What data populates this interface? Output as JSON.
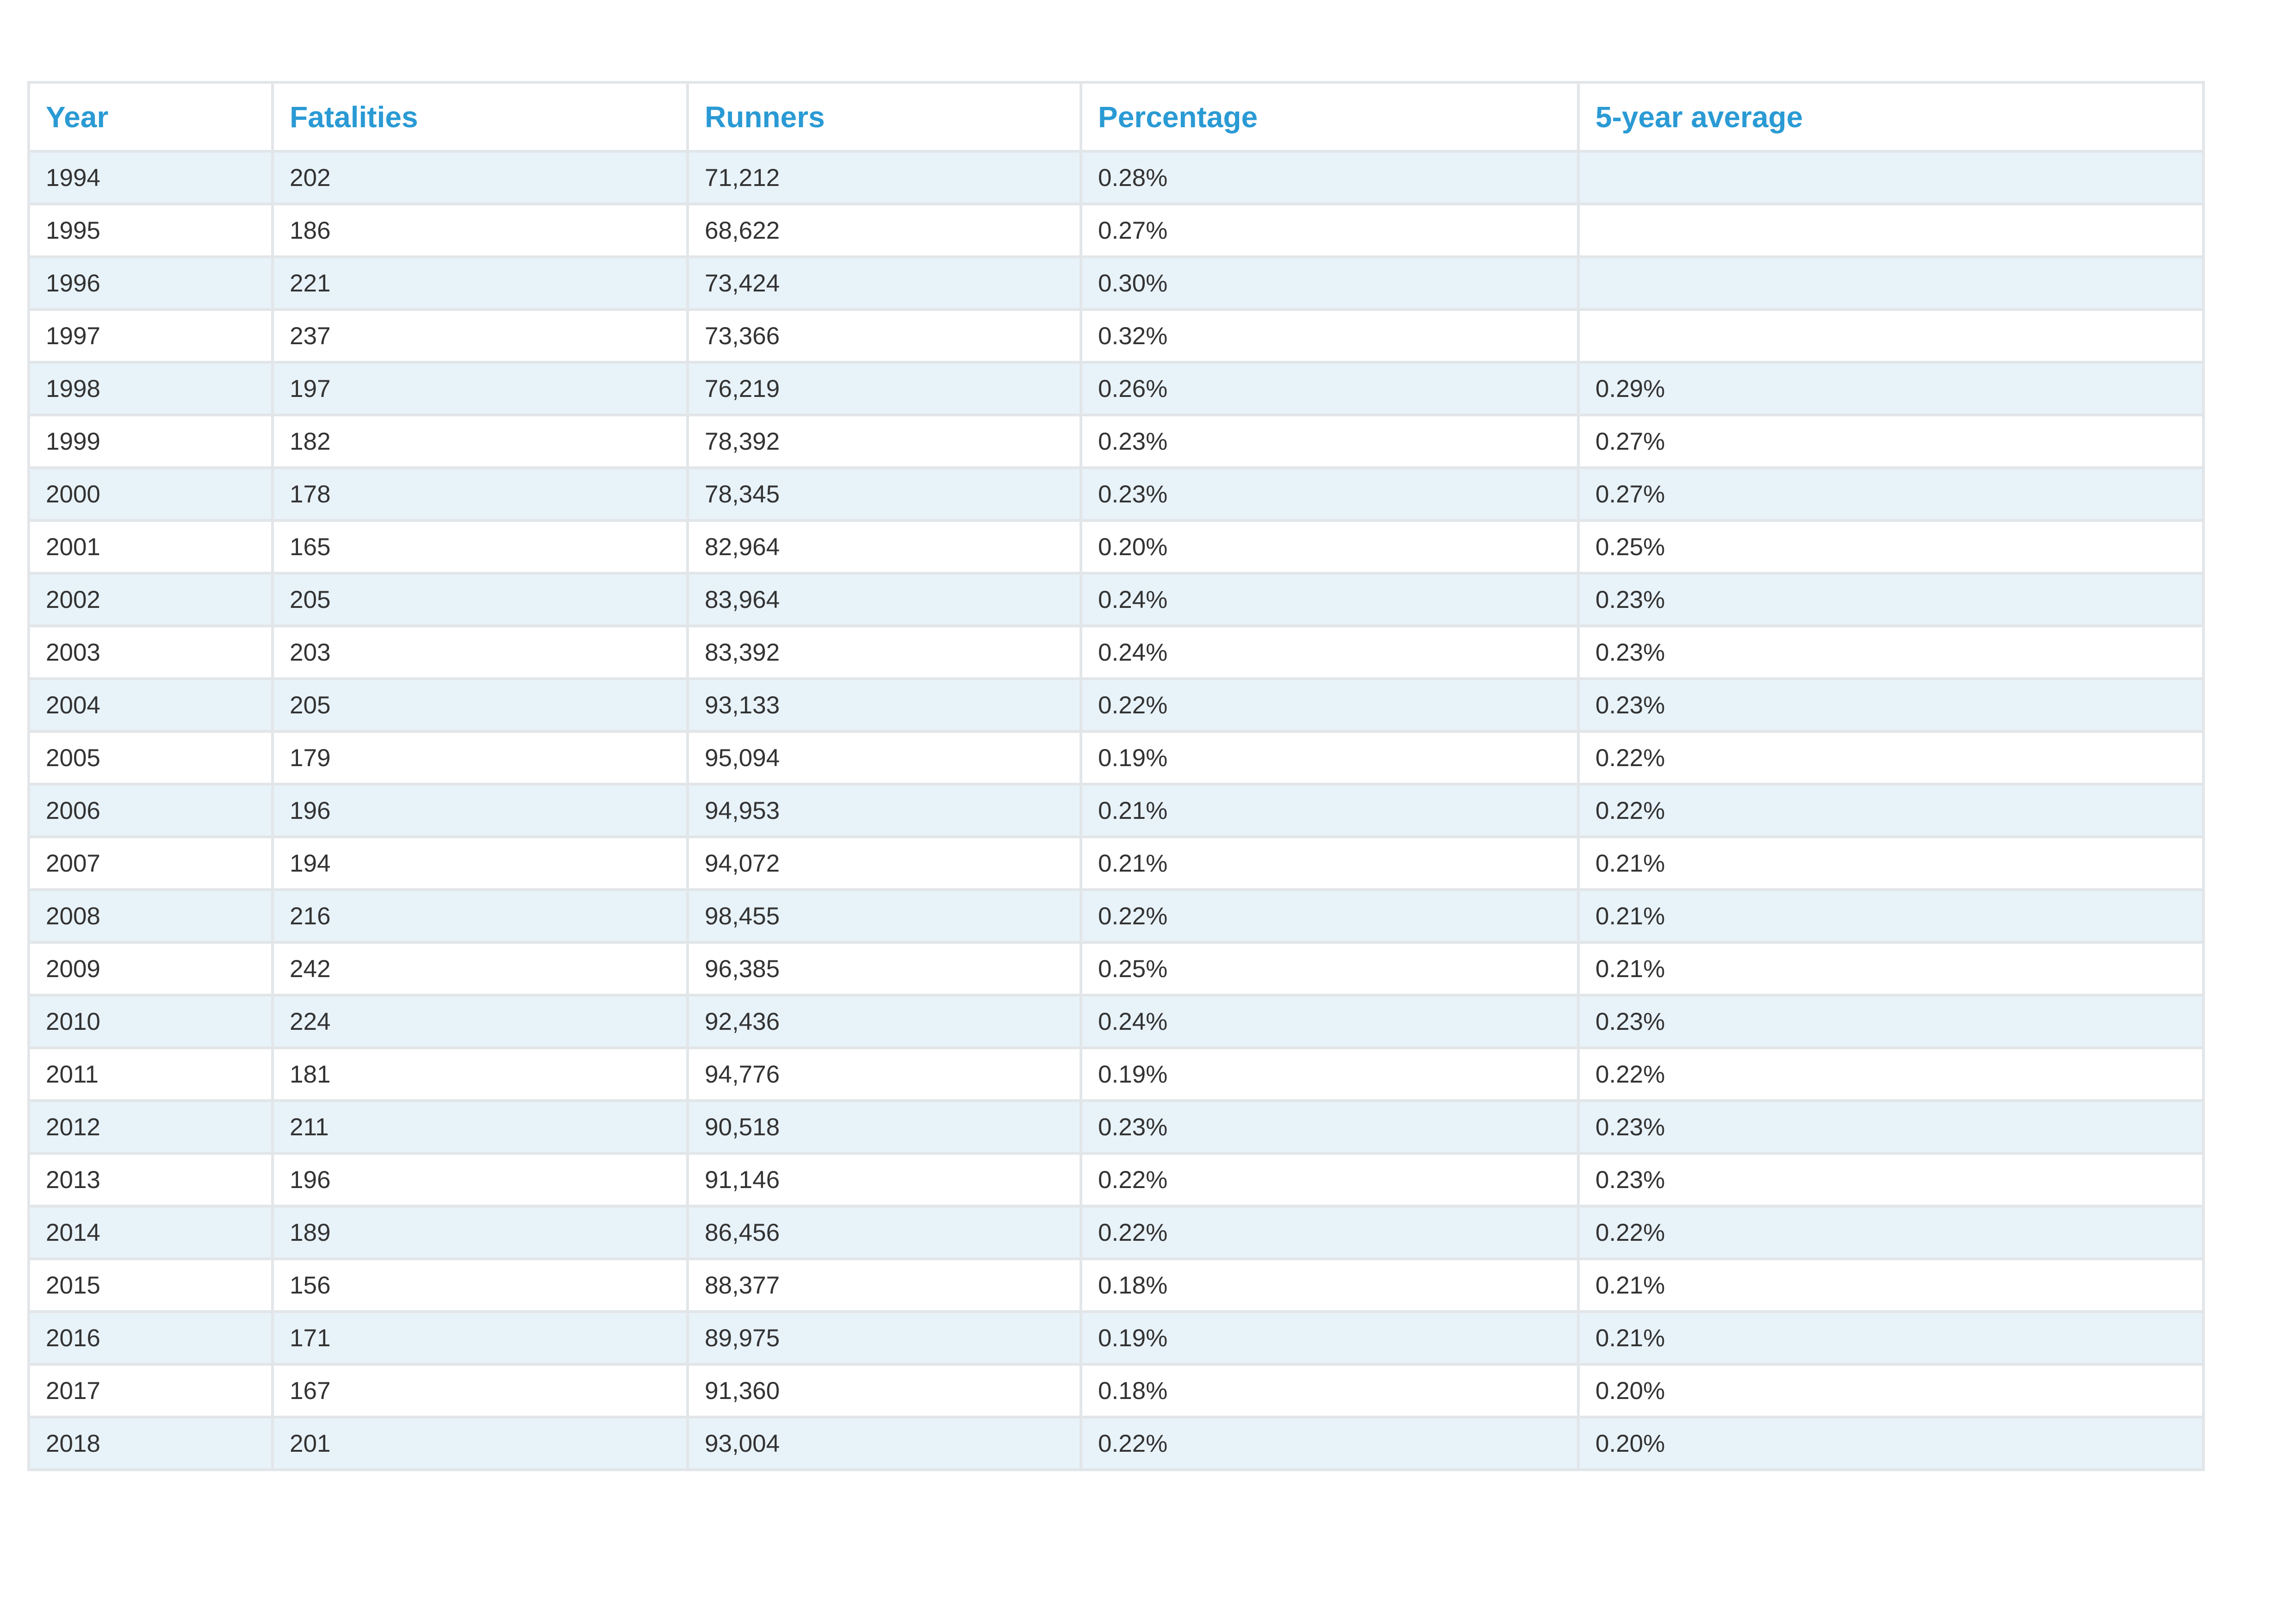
{
  "table": {
    "headers": [
      "Year",
      "Fatalities",
      "Runners",
      "Percentage",
      "5-year average"
    ],
    "rows": [
      [
        "1994",
        "202",
        "71,212",
        "0.28%",
        ""
      ],
      [
        "1995",
        "186",
        "68,622",
        "0.27%",
        ""
      ],
      [
        "1996",
        "221",
        "73,424",
        "0.30%",
        ""
      ],
      [
        "1997",
        "237",
        "73,366",
        "0.32%",
        ""
      ],
      [
        "1998",
        "197",
        "76,219",
        "0.26%",
        "0.29%"
      ],
      [
        "1999",
        "182",
        "78,392",
        "0.23%",
        "0.27%"
      ],
      [
        "2000",
        "178",
        "78,345",
        "0.23%",
        "0.27%"
      ],
      [
        "2001",
        "165",
        "82,964",
        "0.20%",
        "0.25%"
      ],
      [
        "2002",
        "205",
        "83,964",
        "0.24%",
        "0.23%"
      ],
      [
        "2003",
        "203",
        "83,392",
        "0.24%",
        "0.23%"
      ],
      [
        "2004",
        "205",
        "93,133",
        "0.22%",
        "0.23%"
      ],
      [
        "2005",
        "179",
        "95,094",
        "0.19%",
        "0.22%"
      ],
      [
        "2006",
        "196",
        "94,953",
        "0.21%",
        "0.22%"
      ],
      [
        "2007",
        "194",
        "94,072",
        "0.21%",
        "0.21%"
      ],
      [
        "2008",
        "216",
        "98,455",
        "0.22%",
        "0.21%"
      ],
      [
        "2009",
        "242",
        "96,385",
        "0.25%",
        "0.21%"
      ],
      [
        "2010",
        "224",
        "92,436",
        "0.24%",
        "0.23%"
      ],
      [
        "2011",
        "181",
        "94,776",
        "0.19%",
        "0.22%"
      ],
      [
        "2012",
        "211",
        "90,518",
        "0.23%",
        "0.23%"
      ],
      [
        "2013",
        "196",
        "91,146",
        "0.22%",
        "0.23%"
      ],
      [
        "2014",
        "189",
        "86,456",
        "0.22%",
        "0.22%"
      ],
      [
        "2015",
        "156",
        "88,377",
        "0.18%",
        "0.21%"
      ],
      [
        "2016",
        "171",
        "89,975",
        "0.19%",
        "0.21%"
      ],
      [
        "2017",
        "167",
        "91,360",
        "0.18%",
        "0.20%"
      ],
      [
        "2018",
        "201",
        "93,004",
        "0.22%",
        "0.20%"
      ]
    ]
  },
  "colors": {
    "header_text": "#2a9ad4",
    "body_text": "#333333",
    "row_stripe": "#e8f2f9",
    "row_plain": "#ffffff",
    "border": "#e2e6e9"
  }
}
